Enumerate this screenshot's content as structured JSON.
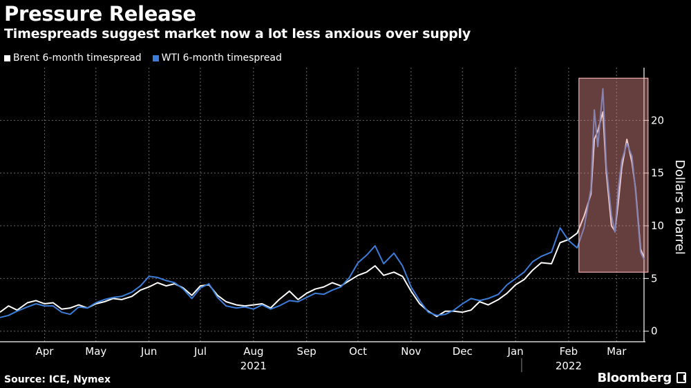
{
  "header": {
    "title": "Pressure Release",
    "subtitle": "Timespreads suggest market now a lot less anxious over supply"
  },
  "footer": {
    "source": "Source: ICE, Nymex",
    "brand": "Bloomberg"
  },
  "colors": {
    "background": "#000000",
    "brent": "#ffffff",
    "wti": "#3b7dd8",
    "highlight": "#e08a8a",
    "grid": "#6a6a6a"
  },
  "chart_data": {
    "type": "line",
    "title": "Pressure Release",
    "subtitle": "Timespreads suggest market now a lot less anxious over supply",
    "ylabel": "Dollars a barrel",
    "ylim": [
      -1,
      25
    ],
    "yticks": [
      0,
      5,
      10,
      15,
      20
    ],
    "x_range": [
      "2021-03-20",
      "2022-03-31"
    ],
    "x_tick_labels": [
      {
        "label": "Apr",
        "date": "2021-04-15"
      },
      {
        "label": "May",
        "date": "2021-05-15"
      },
      {
        "label": "Jun",
        "date": "2021-06-15"
      },
      {
        "label": "Jul",
        "date": "2021-07-15"
      },
      {
        "label": "Aug",
        "date": "2021-08-15"
      },
      {
        "label": "Sep",
        "date": "2021-09-15"
      },
      {
        "label": "Oct",
        "date": "2021-10-15"
      },
      {
        "label": "Nov",
        "date": "2021-11-15"
      },
      {
        "label": "Dec",
        "date": "2021-12-15"
      },
      {
        "label": "Jan",
        "date": "2022-01-15"
      },
      {
        "label": "Feb",
        "date": "2022-02-15"
      },
      {
        "label": "Mar",
        "date": "2022-03-15"
      }
    ],
    "year_labels": [
      {
        "label": "2021",
        "date": "2021-08-15"
      },
      {
        "label": "2022",
        "date": "2022-02-15"
      }
    ],
    "grid": true,
    "legend_position": "top-left",
    "highlight_range": {
      "start": "2022-02-21",
      "end": "2022-03-31",
      "ymin": 5.6,
      "ymax": 24.0
    },
    "series": [
      {
        "name": "Brent 6-month timespread",
        "color": "#ffffff",
        "points": [
          [
            "2021-03-20",
            1.8
          ],
          [
            "2021-03-25",
            2.4
          ],
          [
            "2021-03-30",
            2.0
          ],
          [
            "2021-04-05",
            2.7
          ],
          [
            "2021-04-10",
            2.9
          ],
          [
            "2021-04-15",
            2.6
          ],
          [
            "2021-04-20",
            2.7
          ],
          [
            "2021-04-25",
            2.1
          ],
          [
            "2021-04-30",
            2.2
          ],
          [
            "2021-05-05",
            2.5
          ],
          [
            "2021-05-10",
            2.2
          ],
          [
            "2021-05-15",
            2.6
          ],
          [
            "2021-05-20",
            2.8
          ],
          [
            "2021-05-25",
            3.1
          ],
          [
            "2021-05-30",
            3.0
          ],
          [
            "2021-06-05",
            3.3
          ],
          [
            "2021-06-10",
            3.9
          ],
          [
            "2021-06-15",
            4.2
          ],
          [
            "2021-06-20",
            4.6
          ],
          [
            "2021-06-25",
            4.3
          ],
          [
            "2021-06-30",
            4.5
          ],
          [
            "2021-07-05",
            4.1
          ],
          [
            "2021-07-10",
            3.4
          ],
          [
            "2021-07-15",
            4.3
          ],
          [
            "2021-07-20",
            4.4
          ],
          [
            "2021-07-25",
            3.4
          ],
          [
            "2021-07-30",
            2.8
          ],
          [
            "2021-08-05",
            2.5
          ],
          [
            "2021-08-10",
            2.4
          ],
          [
            "2021-08-15",
            2.5
          ],
          [
            "2021-08-20",
            2.6
          ],
          [
            "2021-08-25",
            2.2
          ],
          [
            "2021-08-30",
            3.0
          ],
          [
            "2021-09-05",
            3.8
          ],
          [
            "2021-09-10",
            3.0
          ],
          [
            "2021-09-15",
            3.6
          ],
          [
            "2021-09-20",
            4.0
          ],
          [
            "2021-09-25",
            4.2
          ],
          [
            "2021-09-30",
            4.6
          ],
          [
            "2021-10-05",
            4.3
          ],
          [
            "2021-10-10",
            4.8
          ],
          [
            "2021-10-15",
            5.3
          ],
          [
            "2021-10-20",
            5.6
          ],
          [
            "2021-10-25",
            6.2
          ],
          [
            "2021-10-30",
            5.3
          ],
          [
            "2021-11-05",
            5.6
          ],
          [
            "2021-11-10",
            5.2
          ],
          [
            "2021-11-15",
            3.8
          ],
          [
            "2021-11-20",
            2.6
          ],
          [
            "2021-11-25",
            1.9
          ],
          [
            "2021-11-30",
            1.4
          ],
          [
            "2021-12-05",
            1.9
          ],
          [
            "2021-12-10",
            1.9
          ],
          [
            "2021-12-15",
            1.8
          ],
          [
            "2021-12-20",
            2.0
          ],
          [
            "2021-12-25",
            2.8
          ],
          [
            "2021-12-30",
            2.5
          ],
          [
            "2022-01-05",
            3.0
          ],
          [
            "2022-01-10",
            3.6
          ],
          [
            "2022-01-15",
            4.4
          ],
          [
            "2022-01-20",
            4.9
          ],
          [
            "2022-01-25",
            5.8
          ],
          [
            "2022-01-30",
            6.5
          ],
          [
            "2022-02-05",
            6.4
          ],
          [
            "2022-02-10",
            8.4
          ],
          [
            "2022-02-15",
            8.7
          ],
          [
            "2022-02-20",
            9.3
          ],
          [
            "2022-02-24",
            10.9
          ],
          [
            "2022-02-28",
            13.0
          ],
          [
            "2022-03-02",
            18.2
          ],
          [
            "2022-03-04",
            19.0
          ],
          [
            "2022-03-07",
            20.8
          ],
          [
            "2022-03-09",
            15.0
          ],
          [
            "2022-03-12",
            10.0
          ],
          [
            "2022-03-14",
            9.5
          ],
          [
            "2022-03-16",
            12.2
          ],
          [
            "2022-03-18",
            15.5
          ],
          [
            "2022-03-21",
            18.2
          ],
          [
            "2022-03-24",
            16.0
          ],
          [
            "2022-03-26",
            13.6
          ],
          [
            "2022-03-29",
            7.8
          ],
          [
            "2022-03-31",
            7.0
          ]
        ]
      },
      {
        "name": "WTI 6-month timespread",
        "color": "#3b7dd8",
        "points": [
          [
            "2021-03-20",
            1.3
          ],
          [
            "2021-03-25",
            1.5
          ],
          [
            "2021-03-30",
            1.9
          ],
          [
            "2021-04-05",
            2.3
          ],
          [
            "2021-04-10",
            2.6
          ],
          [
            "2021-04-15",
            2.4
          ],
          [
            "2021-04-20",
            2.4
          ],
          [
            "2021-04-25",
            1.8
          ],
          [
            "2021-04-30",
            1.6
          ],
          [
            "2021-05-05",
            2.3
          ],
          [
            "2021-05-10",
            2.2
          ],
          [
            "2021-05-15",
            2.7
          ],
          [
            "2021-05-20",
            3.0
          ],
          [
            "2021-05-25",
            3.2
          ],
          [
            "2021-05-30",
            3.3
          ],
          [
            "2021-06-05",
            3.7
          ],
          [
            "2021-06-10",
            4.3
          ],
          [
            "2021-06-15",
            5.2
          ],
          [
            "2021-06-20",
            5.1
          ],
          [
            "2021-06-25",
            4.8
          ],
          [
            "2021-06-30",
            4.6
          ],
          [
            "2021-07-05",
            4.0
          ],
          [
            "2021-07-10",
            3.1
          ],
          [
            "2021-07-15",
            4.1
          ],
          [
            "2021-07-20",
            4.5
          ],
          [
            "2021-07-25",
            3.2
          ],
          [
            "2021-07-30",
            2.4
          ],
          [
            "2021-08-05",
            2.2
          ],
          [
            "2021-08-10",
            2.3
          ],
          [
            "2021-08-15",
            2.1
          ],
          [
            "2021-08-20",
            2.5
          ],
          [
            "2021-08-25",
            2.1
          ],
          [
            "2021-08-30",
            2.4
          ],
          [
            "2021-09-05",
            2.9
          ],
          [
            "2021-09-10",
            2.8
          ],
          [
            "2021-09-15",
            3.2
          ],
          [
            "2021-09-20",
            3.6
          ],
          [
            "2021-09-25",
            3.5
          ],
          [
            "2021-09-30",
            3.9
          ],
          [
            "2021-10-05",
            4.2
          ],
          [
            "2021-10-10",
            5.1
          ],
          [
            "2021-10-15",
            6.5
          ],
          [
            "2021-10-20",
            7.2
          ],
          [
            "2021-10-25",
            8.1
          ],
          [
            "2021-10-30",
            6.4
          ],
          [
            "2021-11-05",
            7.4
          ],
          [
            "2021-11-10",
            6.2
          ],
          [
            "2021-11-15",
            4.2
          ],
          [
            "2021-11-20",
            2.9
          ],
          [
            "2021-11-25",
            1.8
          ],
          [
            "2021-11-30",
            1.5
          ],
          [
            "2021-12-05",
            1.6
          ],
          [
            "2021-12-10",
            2.0
          ],
          [
            "2021-12-15",
            2.6
          ],
          [
            "2021-12-20",
            3.1
          ],
          [
            "2021-12-25",
            2.9
          ],
          [
            "2021-12-30",
            3.1
          ],
          [
            "2022-01-05",
            3.5
          ],
          [
            "2022-01-10",
            4.4
          ],
          [
            "2022-01-15",
            5.0
          ],
          [
            "2022-01-20",
            5.6
          ],
          [
            "2022-01-25",
            6.6
          ],
          [
            "2022-01-30",
            7.1
          ],
          [
            "2022-02-05",
            7.5
          ],
          [
            "2022-02-10",
            9.8
          ],
          [
            "2022-02-15",
            8.6
          ],
          [
            "2022-02-20",
            7.9
          ],
          [
            "2022-02-24",
            9.8
          ],
          [
            "2022-02-28",
            13.5
          ],
          [
            "2022-03-02",
            21.0
          ],
          [
            "2022-03-04",
            17.5
          ],
          [
            "2022-03-07",
            23.0
          ],
          [
            "2022-03-09",
            15.6
          ],
          [
            "2022-03-12",
            11.0
          ],
          [
            "2022-03-14",
            9.4
          ],
          [
            "2022-03-16",
            13.5
          ],
          [
            "2022-03-18",
            16.2
          ],
          [
            "2022-03-21",
            17.8
          ],
          [
            "2022-03-24",
            16.6
          ],
          [
            "2022-03-26",
            13.4
          ],
          [
            "2022-03-29",
            7.5
          ],
          [
            "2022-03-31",
            6.8
          ]
        ]
      }
    ]
  }
}
